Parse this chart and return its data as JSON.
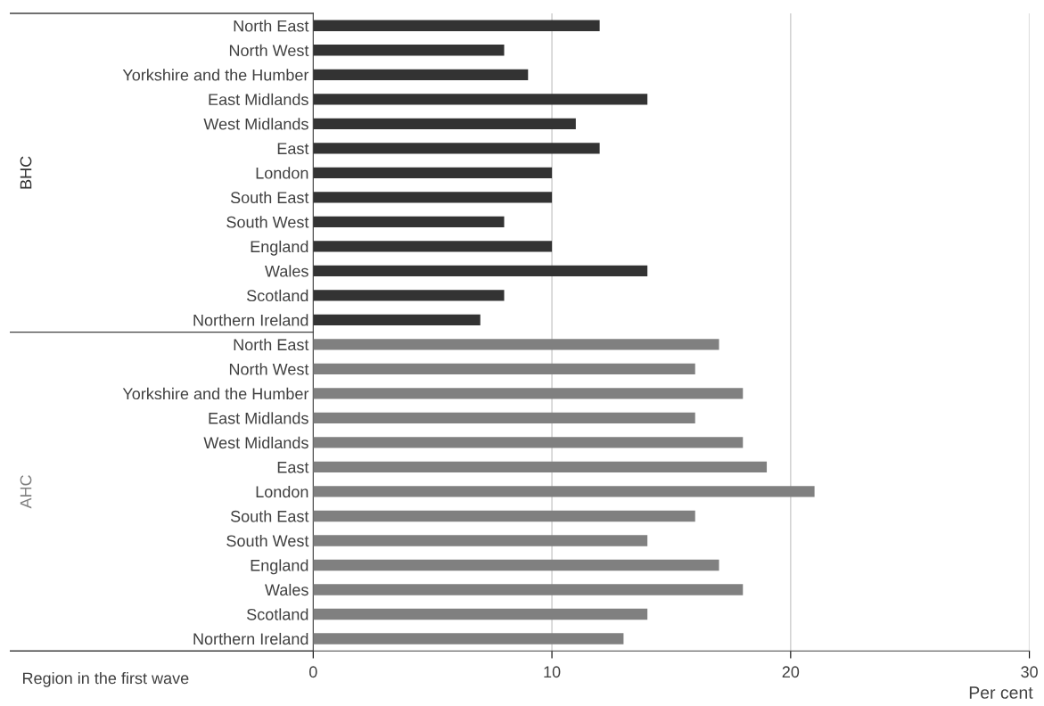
{
  "chart_data": {
    "type": "bar",
    "orientation": "horizontal",
    "categories": [
      "North East",
      "North West",
      "Yorkshire and the Humber",
      "East Midlands",
      "West Midlands",
      "East",
      "London",
      "South East",
      "South West",
      "England",
      "Wales",
      "Scotland",
      "Northern Ireland",
      "North East",
      "North West",
      "Yorkshire and the Humber",
      "East Midlands",
      "West Midlands",
      "East",
      "London",
      "South East",
      "South West",
      "England",
      "Wales",
      "Scotland",
      "Northern Ireland"
    ],
    "series": [
      {
        "name": "BHC",
        "color": "#333333",
        "values": [
          12,
          8,
          9,
          14,
          11,
          12,
          10,
          10,
          8,
          10,
          14,
          8,
          7,
          null,
          null,
          null,
          null,
          null,
          null,
          null,
          null,
          null,
          null,
          null,
          null,
          null
        ]
      },
      {
        "name": "AHC",
        "color": "#808080",
        "values": [
          null,
          null,
          null,
          null,
          null,
          null,
          null,
          null,
          null,
          null,
          null,
          null,
          null,
          17,
          16,
          18,
          16,
          18,
          19,
          21,
          16,
          14,
          17,
          18,
          14,
          13
        ]
      }
    ],
    "xlabel": "Per cent",
    "ylabel": "Region in the first wave",
    "xlim": [
      0,
      30
    ],
    "xticks": [
      0,
      10,
      20,
      30
    ],
    "grid": "x",
    "legend": false
  }
}
